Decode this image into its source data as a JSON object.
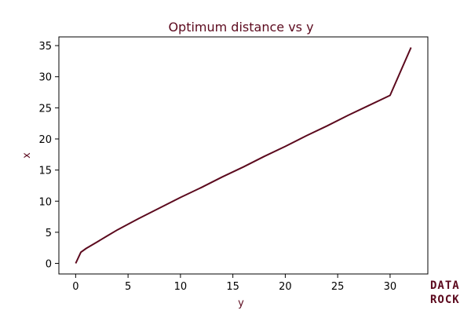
{
  "colors": {
    "accent": "#5c0a1e",
    "axis": "#000000",
    "background": "#ffffff"
  },
  "logo": {
    "line1": "DATA",
    "line2": "ROCK"
  },
  "chart_data": {
    "type": "line",
    "title": "Optimum distance vs y",
    "xlabel": "y",
    "ylabel": "x",
    "xlim": [
      -1.6,
      33.6
    ],
    "ylim": [
      -1.7,
      36.4
    ],
    "xticks": [
      0,
      5,
      10,
      15,
      20,
      25,
      30
    ],
    "yticks": [
      0,
      5,
      10,
      15,
      20,
      25,
      30,
      35
    ],
    "grid": false,
    "legend": "none",
    "series": [
      {
        "x": [
          0,
          0.5,
          1,
          2,
          3,
          4,
          5,
          6,
          8,
          10,
          12,
          14,
          16,
          18,
          20,
          22,
          24,
          26,
          28,
          30,
          32
        ],
        "y": [
          0,
          1.8,
          2.4,
          3.4,
          4.4,
          5.4,
          6.3,
          7.2,
          8.9,
          10.6,
          12.2,
          13.9,
          15.5,
          17.2,
          18.8,
          20.5,
          22.1,
          23.8,
          25.4,
          27.0,
          34.7
        ]
      }
    ]
  }
}
